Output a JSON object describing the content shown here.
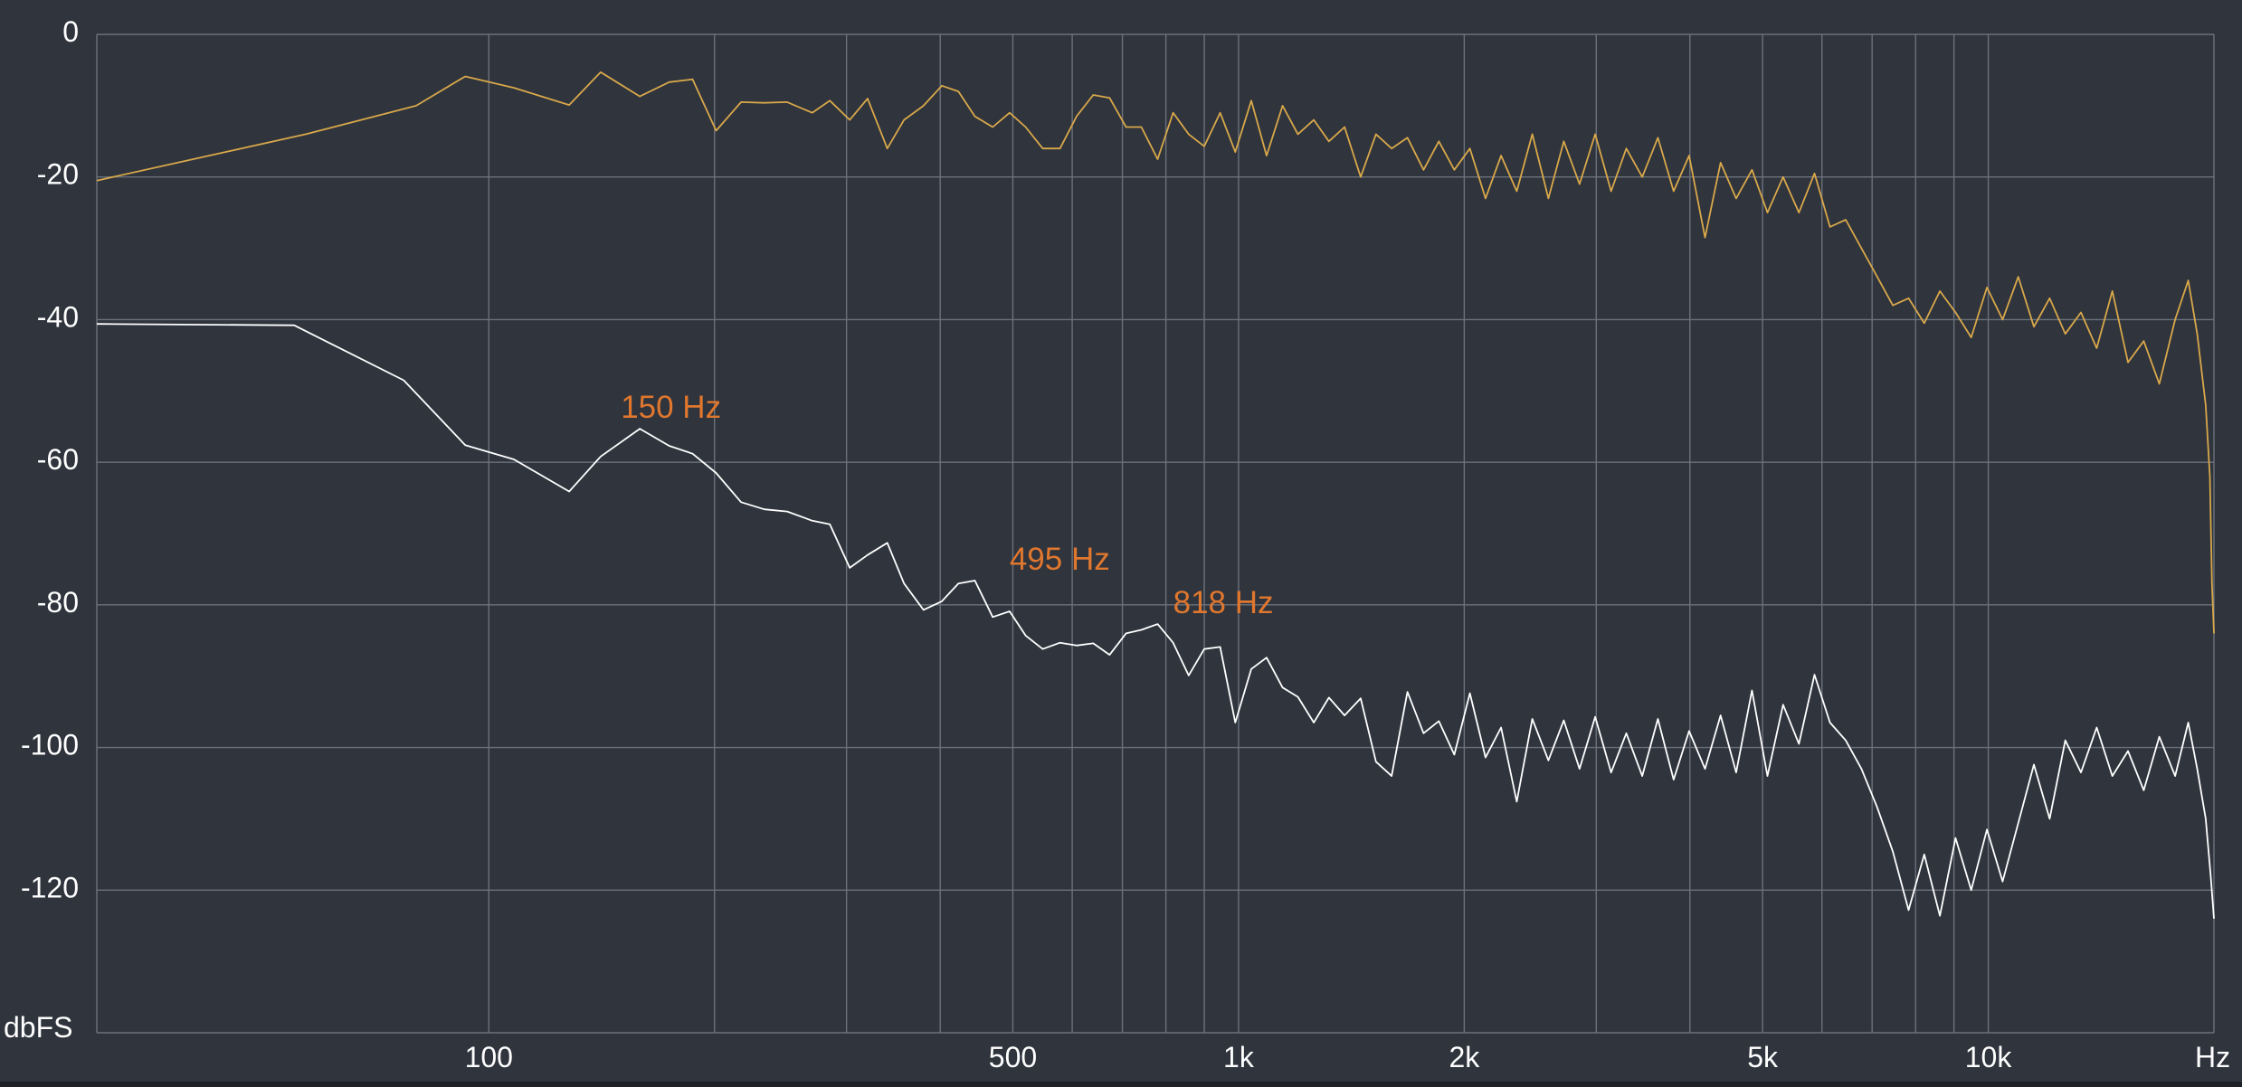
{
  "chart_data": {
    "type": "line",
    "xscale": "log",
    "xlim": [
      30,
      20000
    ],
    "ylim": [
      -140,
      0
    ],
    "ylabel": "dbFS",
    "xunit": "Hz",
    "grid": true,
    "y_ticks": [
      {
        "value": 0,
        "label": "0"
      },
      {
        "value": -20,
        "label": "-20"
      },
      {
        "value": -40,
        "label": "-40"
      },
      {
        "value": -60,
        "label": "-60"
      },
      {
        "value": -80,
        "label": "-80"
      },
      {
        "value": -100,
        "label": "-100"
      },
      {
        "value": -120,
        "label": "-120"
      }
    ],
    "x_ticks": [
      {
        "value": 100,
        "label": "100"
      },
      {
        "value": 500,
        "label": "500"
      },
      {
        "value": 1000,
        "label": "1k"
      },
      {
        "value": 2000,
        "label": "2k"
      },
      {
        "value": 5000,
        "label": "5k"
      },
      {
        "value": 10000,
        "label": "10k"
      }
    ],
    "x_gridlines": [
      100,
      200,
      300,
      400,
      500,
      600,
      700,
      800,
      900,
      1000,
      2000,
      3000,
      4000,
      5000,
      6000,
      7000,
      8000,
      9000,
      10000,
      20000
    ],
    "series": [
      {
        "color": "#d9a84a",
        "points": [
          [
            30,
            -20.5
          ],
          [
            57,
            -14
          ],
          [
            80,
            -10
          ],
          [
            93,
            -5.9
          ],
          [
            108,
            -7.5
          ],
          [
            128,
            -9.9
          ],
          [
            141,
            -5.3
          ],
          [
            159,
            -8.7
          ],
          [
            174,
            -6.7
          ],
          [
            187,
            -6.3
          ],
          [
            201,
            -13.5
          ],
          [
            217,
            -9.5
          ],
          [
            233,
            -9.6
          ],
          [
            250,
            -9.5
          ],
          [
            270,
            -11
          ],
          [
            285,
            -9.3
          ],
          [
            303,
            -12
          ],
          [
            320,
            -9
          ],
          [
            340,
            -16
          ],
          [
            358,
            -12
          ],
          [
            380,
            -10
          ],
          [
            402,
            -7.2
          ],
          [
            423,
            -8
          ],
          [
            445,
            -11.5
          ],
          [
            470,
            -13
          ],
          [
            495,
            -11
          ],
          [
            520,
            -13
          ],
          [
            548,
            -16
          ],
          [
            578,
            -16
          ],
          [
            608,
            -11.5
          ],
          [
            640,
            -8.5
          ],
          [
            673,
            -8.9
          ],
          [
            708,
            -13
          ],
          [
            742,
            -13
          ],
          [
            780,
            -17.5
          ],
          [
            818,
            -11
          ],
          [
            858,
            -14
          ],
          [
            900,
            -15.7
          ],
          [
            945,
            -11
          ],
          [
            990,
            -16.5
          ],
          [
            1040,
            -9.3
          ],
          [
            1090,
            -17
          ],
          [
            1145,
            -10
          ],
          [
            1200,
            -14
          ],
          [
            1260,
            -12
          ],
          [
            1320,
            -15
          ],
          [
            1385,
            -13
          ],
          [
            1455,
            -20
          ],
          [
            1525,
            -14
          ],
          [
            1600,
            -16
          ],
          [
            1680,
            -14.5
          ],
          [
            1765,
            -19
          ],
          [
            1850,
            -15
          ],
          [
            1940,
            -19
          ],
          [
            2035,
            -16
          ],
          [
            2135,
            -23
          ],
          [
            2240,
            -17
          ],
          [
            2350,
            -22
          ],
          [
            2465,
            -14
          ],
          [
            2590,
            -23
          ],
          [
            2715,
            -15
          ],
          [
            2850,
            -21
          ],
          [
            2990,
            -14
          ],
          [
            3140,
            -22
          ],
          [
            3290,
            -16
          ],
          [
            3455,
            -20
          ],
          [
            3625,
            -14.5
          ],
          [
            3805,
            -22
          ],
          [
            3990,
            -17
          ],
          [
            4190,
            -28.5
          ],
          [
            4395,
            -18
          ],
          [
            4610,
            -23
          ],
          [
            4840,
            -19
          ],
          [
            5075,
            -25
          ],
          [
            5325,
            -20
          ],
          [
            5590,
            -25
          ],
          [
            5865,
            -19.5
          ],
          [
            6150,
            -27
          ],
          [
            6455,
            -26
          ],
          [
            6775,
            -30
          ],
          [
            7110,
            -34
          ],
          [
            7460,
            -38
          ],
          [
            7830,
            -37
          ],
          [
            8215,
            -40.5
          ],
          [
            8620,
            -36
          ],
          [
            9045,
            -39
          ],
          [
            9490,
            -42.5
          ],
          [
            9960,
            -35.5
          ],
          [
            10450,
            -40
          ],
          [
            10965,
            -34
          ],
          [
            11505,
            -41
          ],
          [
            12075,
            -37
          ],
          [
            12670,
            -42
          ],
          [
            13295,
            -39
          ],
          [
            13950,
            -44
          ],
          [
            14640,
            -36
          ],
          [
            15360,
            -46
          ],
          [
            16120,
            -43
          ],
          [
            16910,
            -49
          ],
          [
            17750,
            -40
          ],
          [
            18480,
            -34.5
          ],
          [
            19000,
            -42
          ],
          [
            19500,
            -52
          ],
          [
            19750,
            -62
          ],
          [
            19880,
            -77
          ],
          [
            20000,
            -84
          ]
        ]
      },
      {
        "color": "#ffffff",
        "points": [
          [
            30,
            -40.6
          ],
          [
            55,
            -40.8
          ],
          [
            77,
            -48.5
          ],
          [
            93,
            -57.6
          ],
          [
            108,
            -59.6
          ],
          [
            128,
            -64.1
          ],
          [
            141,
            -59.2
          ],
          [
            159,
            -55.3
          ],
          [
            174,
            -57.7
          ],
          [
            187,
            -58.8
          ],
          [
            201,
            -61.5
          ],
          [
            217,
            -65.6
          ],
          [
            233,
            -66.6
          ],
          [
            250,
            -66.9
          ],
          [
            270,
            -68.2
          ],
          [
            285,
            -68.7
          ],
          [
            303,
            -74.8
          ],
          [
            320,
            -73
          ],
          [
            340,
            -71.3
          ],
          [
            358,
            -77
          ],
          [
            380,
            -80.7
          ],
          [
            402,
            -79.5
          ],
          [
            423,
            -77
          ],
          [
            445,
            -76.6
          ],
          [
            470,
            -81.7
          ],
          [
            495,
            -80.9
          ],
          [
            520,
            -84.3
          ],
          [
            548,
            -86.2
          ],
          [
            578,
            -85.3
          ],
          [
            608,
            -85.7
          ],
          [
            640,
            -85.4
          ],
          [
            673,
            -87
          ],
          [
            708,
            -84
          ],
          [
            742,
            -83.5
          ],
          [
            780,
            -82.7
          ],
          [
            818,
            -85.3
          ],
          [
            858,
            -89.9
          ],
          [
            900,
            -86.2
          ],
          [
            945,
            -85.9
          ],
          [
            990,
            -96.5
          ],
          [
            1040,
            -89
          ],
          [
            1090,
            -87.4
          ],
          [
            1145,
            -91.6
          ],
          [
            1200,
            -92.9
          ],
          [
            1260,
            -96.5
          ],
          [
            1320,
            -93
          ],
          [
            1385,
            -95.5
          ],
          [
            1455,
            -93.1
          ],
          [
            1525,
            -102
          ],
          [
            1600,
            -104
          ],
          [
            1680,
            -92.2
          ],
          [
            1765,
            -98
          ],
          [
            1850,
            -96.3
          ],
          [
            1940,
            -101
          ],
          [
            2035,
            -92.4
          ],
          [
            2135,
            -101.4
          ],
          [
            2240,
            -97.2
          ],
          [
            2350,
            -107.6
          ],
          [
            2465,
            -96
          ],
          [
            2590,
            -101.8
          ],
          [
            2715,
            -96.2
          ],
          [
            2850,
            -103
          ],
          [
            2990,
            -95.7
          ],
          [
            3140,
            -103.5
          ],
          [
            3290,
            -98
          ],
          [
            3455,
            -104
          ],
          [
            3625,
            -96
          ],
          [
            3805,
            -104.5
          ],
          [
            3990,
            -97.7
          ],
          [
            4190,
            -103
          ],
          [
            4395,
            -95.5
          ],
          [
            4610,
            -103.5
          ],
          [
            4840,
            -92
          ],
          [
            5075,
            -104
          ],
          [
            5325,
            -94
          ],
          [
            5590,
            -99.5
          ],
          [
            5865,
            -89.8
          ],
          [
            6150,
            -96.5
          ],
          [
            6455,
            -99
          ],
          [
            6775,
            -103
          ],
          [
            7110,
            -108.4
          ],
          [
            7460,
            -114.6
          ],
          [
            7830,
            -122.8
          ],
          [
            8215,
            -115
          ],
          [
            8620,
            -123.6
          ],
          [
            9045,
            -112.7
          ],
          [
            9490,
            -120
          ],
          [
            9960,
            -111.5
          ],
          [
            10450,
            -118.8
          ],
          [
            10965,
            -110.6
          ],
          [
            11505,
            -102.4
          ],
          [
            12075,
            -110
          ],
          [
            12670,
            -99
          ],
          [
            13295,
            -103.5
          ],
          [
            13950,
            -97.2
          ],
          [
            14640,
            -104
          ],
          [
            15360,
            -100.5
          ],
          [
            16120,
            -106
          ],
          [
            16910,
            -98.5
          ],
          [
            17750,
            -104
          ],
          [
            18480,
            -96.5
          ],
          [
            19000,
            -103
          ],
          [
            19500,
            -110
          ],
          [
            19800,
            -118
          ],
          [
            20000,
            -124
          ]
        ]
      }
    ],
    "annotations": [
      {
        "text": "150 Hz",
        "x": 150,
        "y": -55.3,
        "color": "#e0772e"
      },
      {
        "text": "495 Hz",
        "x": 495,
        "y": -76.6,
        "color": "#e0772e"
      },
      {
        "text": "818 Hz",
        "x": 818,
        "y": -82.7,
        "color": "#e0772e"
      }
    ]
  }
}
